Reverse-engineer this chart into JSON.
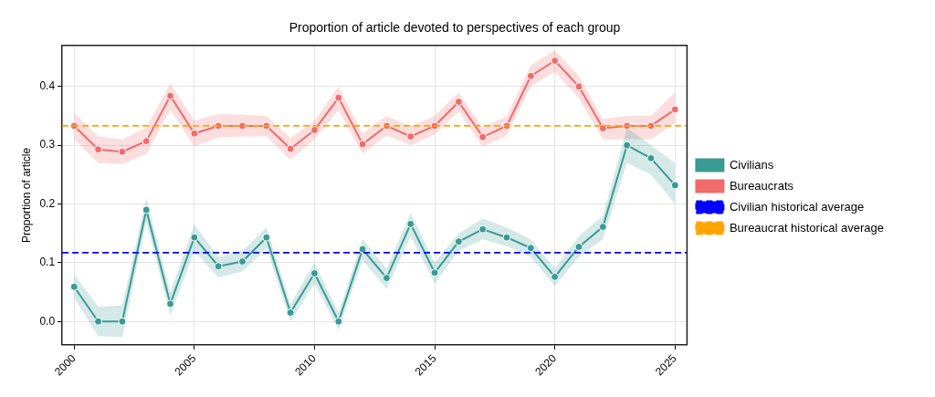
{
  "chart_data": {
    "type": "line",
    "title": "Proportion of article devoted to perspectives of each group",
    "ylabel": "Proportion of article",
    "x": [
      2000,
      2001,
      2002,
      2003,
      2004,
      2005,
      2006,
      2007,
      2008,
      2009,
      2010,
      2011,
      2012,
      2013,
      2014,
      2015,
      2016,
      2017,
      2018,
      2019,
      2020,
      2021,
      2022,
      2023,
      2024,
      2025
    ],
    "xlim": [
      1999.5,
      2025.5
    ],
    "xticks": [
      2000,
      2005,
      2010,
      2015,
      2020,
      2025
    ],
    "ylim": [
      -0.04,
      0.47
    ],
    "yticks": [
      {
        "value": 0,
        "label": "0.0"
      },
      0.1,
      0.2,
      0.3,
      0.4
    ],
    "grid": true,
    "legend": "right",
    "marker": "circle",
    "line_style": "solid",
    "series": [
      {
        "name": "Civilians",
        "color": "#3a9a94",
        "values": [
          0.059,
          0,
          0,
          0.19,
          0.03,
          0.143,
          0.094,
          0.102,
          0.143,
          0.015,
          0.082,
          0,
          0.123,
          0.074,
          0.166,
          0.083,
          0.136,
          0.157,
          0.143,
          0.125,
          0.076,
          0.127,
          0.161,
          0.3,
          0.278,
          0.232
        ],
        "lower": [
          0.04,
          -0.025,
          -0.027,
          0.17,
          0.01,
          0.12,
          0.075,
          0.085,
          0.125,
          0,
          0.065,
          -0.015,
          0.105,
          0.055,
          0.145,
          0.065,
          0.12,
          0.14,
          0.128,
          0.11,
          0.06,
          0.11,
          0.14,
          0.27,
          0.25,
          0.2
        ],
        "upper": [
          0.08,
          0.025,
          0.027,
          0.21,
          0.05,
          0.165,
          0.11,
          0.12,
          0.16,
          0.03,
          0.1,
          0.015,
          0.14,
          0.09,
          0.185,
          0.1,
          0.15,
          0.175,
          0.16,
          0.14,
          0.09,
          0.145,
          0.18,
          0.33,
          0.3,
          0.27
        ]
      },
      {
        "name": "Bureaucrats",
        "color": "#f26b6b",
        "values": [
          0.333,
          0.293,
          0.289,
          0.307,
          0.384,
          0.32,
          0.333,
          0.333,
          0.333,
          0.294,
          0.326,
          0.381,
          0.302,
          0.333,
          0.315,
          0.333,
          0.374,
          0.314,
          0.333,
          0.418,
          0.444,
          0.4,
          0.329,
          0.333,
          0.333,
          0.361
        ],
        "lower": [
          0.31,
          0.27,
          0.268,
          0.285,
          0.36,
          0.298,
          0.313,
          0.315,
          0.315,
          0.275,
          0.31,
          0.36,
          0.285,
          0.317,
          0.3,
          0.318,
          0.358,
          0.297,
          0.317,
          0.4,
          0.425,
          0.38,
          0.31,
          0.31,
          0.31,
          0.338
        ],
        "upper": [
          0.355,
          0.315,
          0.31,
          0.33,
          0.405,
          0.342,
          0.353,
          0.352,
          0.35,
          0.312,
          0.342,
          0.4,
          0.32,
          0.35,
          0.332,
          0.35,
          0.39,
          0.33,
          0.35,
          0.436,
          0.462,
          0.418,
          0.345,
          0.35,
          0.35,
          0.39
        ]
      }
    ],
    "ref_lines": [
      {
        "axis": "y",
        "value": 0.117,
        "label": "Civilian historical average",
        "color": "#0000ff",
        "line_style": "dashed"
      },
      {
        "axis": "y",
        "value": 0.333,
        "label": "Bureaucrat historical average",
        "color": "#ffa500",
        "line_style": "dashed"
      }
    ]
  }
}
